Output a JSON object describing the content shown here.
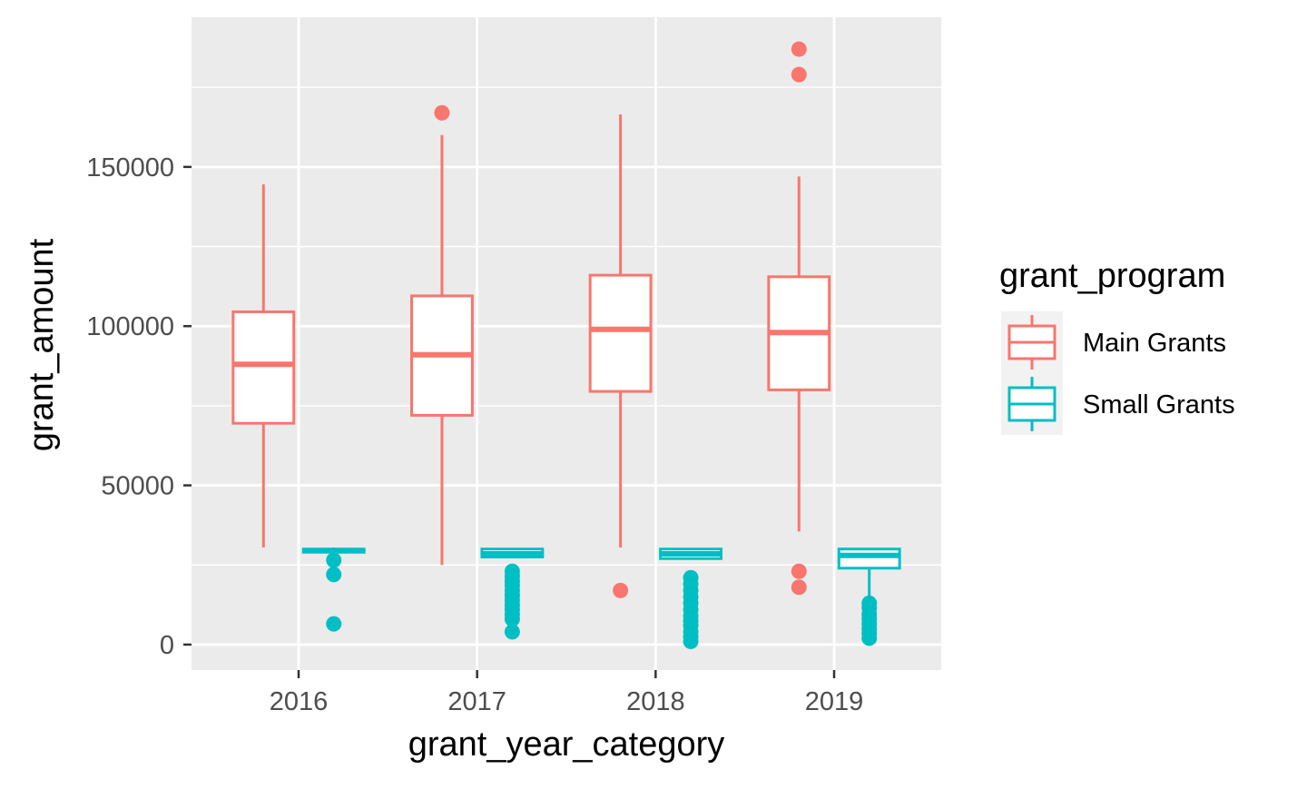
{
  "chart_data": {
    "type": "boxplot",
    "xlabel": "grant_year_category",
    "ylabel": "grant_amount",
    "categories": [
      "2016",
      "2017",
      "2018",
      "2019"
    ],
    "y_ticks": [
      0,
      50000,
      100000,
      150000
    ],
    "y_tick_labels": [
      "0",
      "50000",
      "100000",
      "150000"
    ],
    "ylim": [
      -8000,
      197000
    ],
    "grid": true,
    "legend": {
      "title": "grant_program",
      "position": "right",
      "entries": [
        "Main Grants",
        "Small Grants"
      ]
    },
    "series": [
      {
        "name": "Main Grants",
        "color": "#F8766D",
        "boxes": [
          {
            "category": "2016",
            "whisker_low": 30500,
            "q1": 69500,
            "median": 88000,
            "q3": 104500,
            "whisker_high": 144500,
            "outliers": []
          },
          {
            "category": "2017",
            "whisker_low": 25000,
            "q1": 72000,
            "median": 91000,
            "q3": 109500,
            "whisker_high": 160000,
            "outliers": [
              167000
            ]
          },
          {
            "category": "2018",
            "whisker_low": 30500,
            "q1": 79500,
            "median": 99000,
            "q3": 116000,
            "whisker_high": 166500,
            "outliers": [
              17000
            ]
          },
          {
            "category": "2019",
            "whisker_low": 35500,
            "q1": 80000,
            "median": 98000,
            "q3": 115500,
            "whisker_high": 147000,
            "outliers": [
              18000,
              23000,
              179000,
              187000
            ]
          }
        ]
      },
      {
        "name": "Small Grants",
        "color": "#00BFC4",
        "boxes": [
          {
            "category": "2016",
            "whisker_low": 28500,
            "q1": 29000,
            "median": 29500,
            "q3": 30000,
            "whisker_high": 30500,
            "outliers": [
              6500,
              22000,
              26500
            ]
          },
          {
            "category": "2017",
            "whisker_low": 27500,
            "q1": 27500,
            "median": 28500,
            "q3": 30000,
            "whisker_high": 30000,
            "outliers": [
              4000,
              8000,
              9500,
              11000,
              12500,
              14000,
              15500,
              17000,
              18500,
              20000,
              21500,
              23000
            ]
          },
          {
            "category": "2018",
            "whisker_low": 27000,
            "q1": 27000,
            "median": 28500,
            "q3": 30000,
            "whisker_high": 30000,
            "outliers": [
              1000,
              2500,
              4000,
              6000,
              7500,
              9000,
              11000,
              13000,
              15000,
              17000,
              19000,
              21000
            ]
          },
          {
            "category": "2019",
            "whisker_low": 14000,
            "q1": 24000,
            "median": 28000,
            "q3": 30000,
            "whisker_high": 30000,
            "outliers": [
              2000,
              3500,
              5000,
              6500,
              8000,
              9500,
              11500,
              13000
            ]
          }
        ]
      }
    ]
  }
}
